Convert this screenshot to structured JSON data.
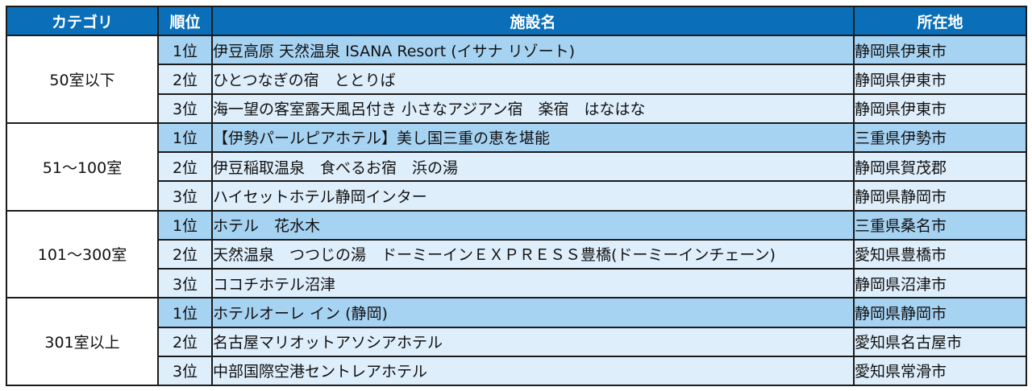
{
  "headers": {
    "category": "カテゴリ",
    "rank": "順位",
    "facility": "施設名",
    "location": "所在地"
  },
  "groups": [
    {
      "category": "50室以下",
      "rows": [
        {
          "rank": "1位",
          "name": "伊豆高原 天然温泉 ISANA Resort (イサナ リゾート)",
          "location": "静岡県伊東市"
        },
        {
          "rank": "2位",
          "name": "ひとつなぎの宿　ととりば",
          "location": "静岡県伊東市"
        },
        {
          "rank": "3位",
          "name": "海一望の客室露天風呂付き 小さなアジアン宿　楽宿　はなはな",
          "location": "静岡県伊東市"
        }
      ]
    },
    {
      "category": "51～100室",
      "rows": [
        {
          "rank": "1位",
          "name": "【伊勢パールピアホテル】美し国三重の恵を堪能",
          "location": "三重県伊勢市"
        },
        {
          "rank": "2位",
          "name": "伊豆稲取温泉　食べるお宿　浜の湯",
          "location": "静岡県賀茂郡"
        },
        {
          "rank": "3位",
          "name": "ハイセットホテル静岡インター",
          "location": "静岡県静岡市"
        }
      ]
    },
    {
      "category": "101～300室",
      "rows": [
        {
          "rank": "1位",
          "name": "ホテル　花水木",
          "location": "三重県桑名市"
        },
        {
          "rank": "2位",
          "name": "天然温泉　つつじの湯　ドーミーインＥＸＰＲＥＳＳ豊橋(ドーミーインチェーン)",
          "location": "愛知県豊橋市"
        },
        {
          "rank": "3位",
          "name": "ココチホテル沼津",
          "location": "静岡県沼津市"
        }
      ]
    },
    {
      "category": "301室以上",
      "rows": [
        {
          "rank": "1位",
          "name": "ホテルオーレ イン (静岡)",
          "location": "静岡県静岡市"
        },
        {
          "rank": "2位",
          "name": "名古屋マリオットアソシアホテル",
          "location": "愛知県名古屋市"
        },
        {
          "rank": "3位",
          "name": "中部国際空港セントレアホテル",
          "location": "愛知県常滑市"
        }
      ]
    }
  ]
}
